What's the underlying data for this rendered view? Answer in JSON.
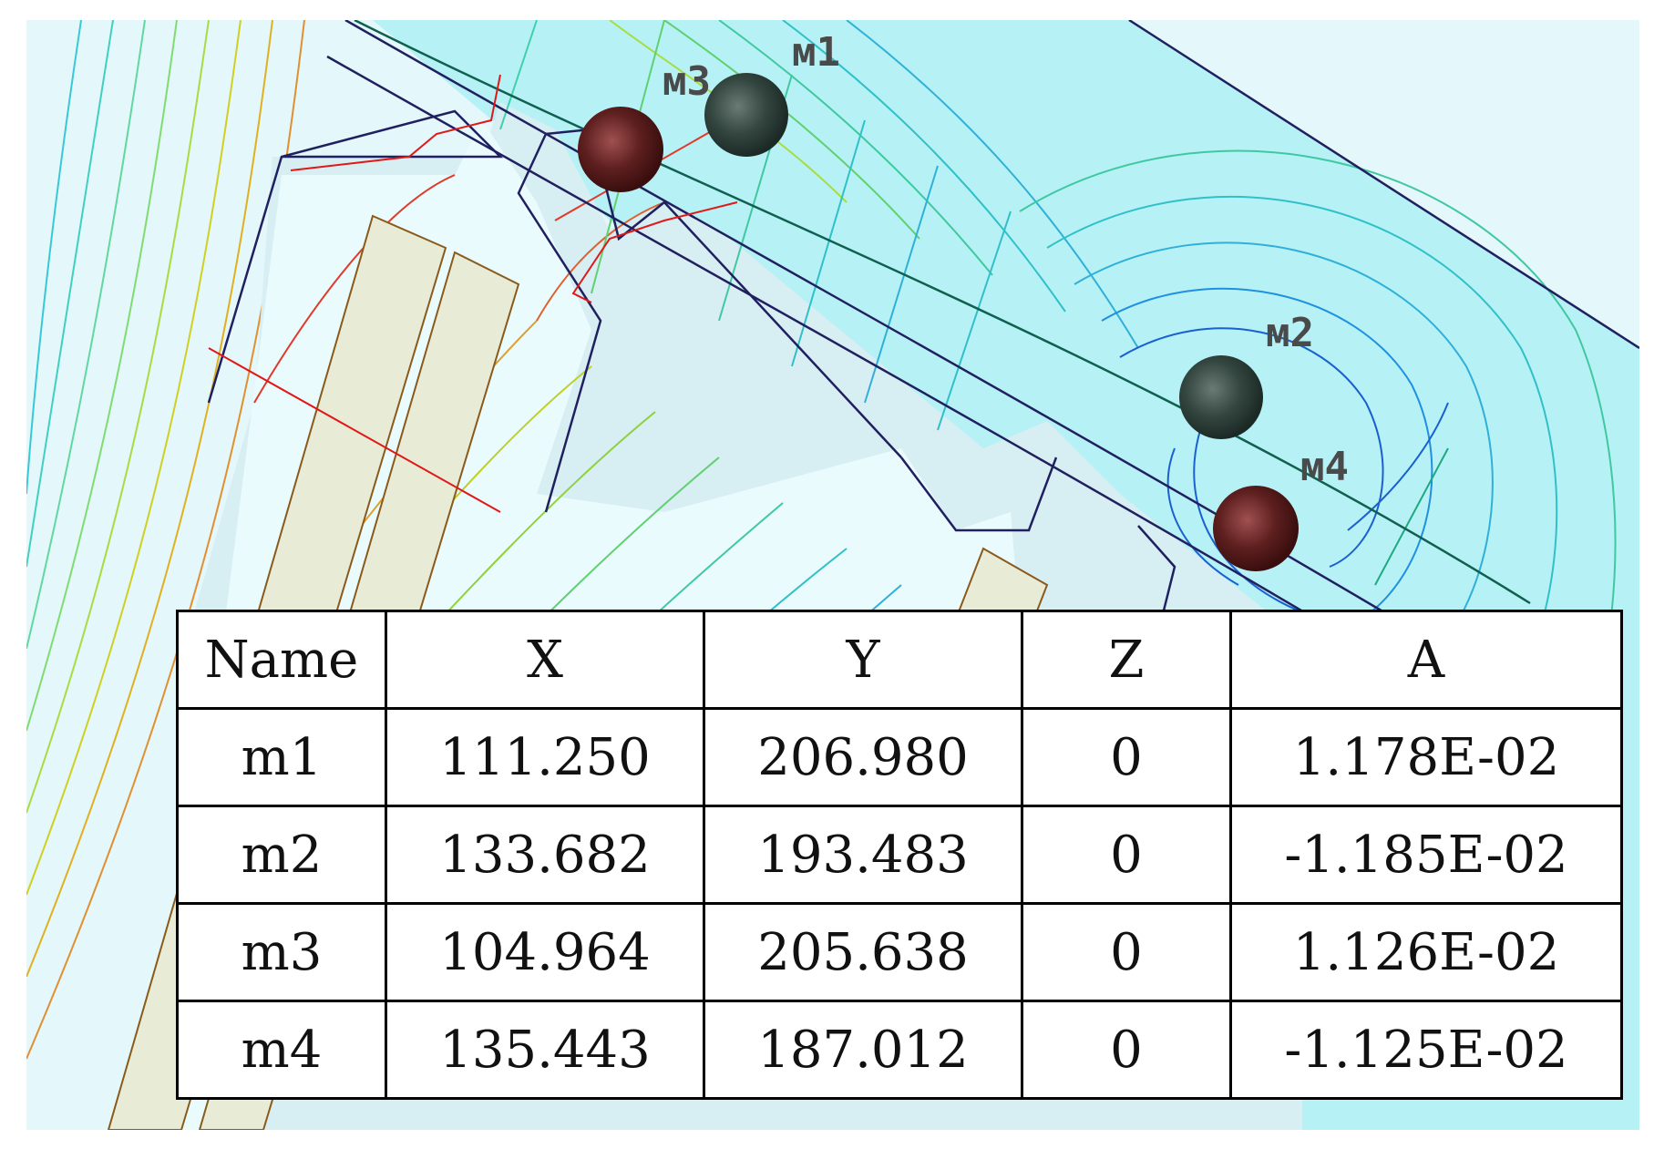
{
  "markers": [
    {
      "name": "m1",
      "label": "м1"
    },
    {
      "name": "m2",
      "label": "м2"
    },
    {
      "name": "m3",
      "label": "м3"
    },
    {
      "name": "m4",
      "label": "м4"
    }
  ],
  "table": {
    "headers": [
      "Name",
      "X",
      "Y",
      "Z",
      "A"
    ],
    "rows": [
      [
        "m1",
        "111.250",
        "206.980",
        "0",
        "1.178E-02"
      ],
      [
        "m2",
        "133.682",
        "193.483",
        "0",
        "-1.185E-02"
      ],
      [
        "m3",
        "104.964",
        "205.638",
        "0",
        "1.126E-02"
      ],
      [
        "m4",
        "135.443",
        "187.012",
        "0",
        "-1.125E-02"
      ]
    ]
  },
  "colors": {
    "background_light": "#e6fbfc",
    "region_cyan": "#b4f0f4",
    "region_blue": "#cfeaf0",
    "region_beige": "#e8ecd6",
    "outline_navy": "#202060",
    "outline_brown": "#8a5a1a",
    "red_line": "#e01818",
    "marker_positive": "#5a1e1e",
    "marker_negative": "#2e3e38"
  }
}
